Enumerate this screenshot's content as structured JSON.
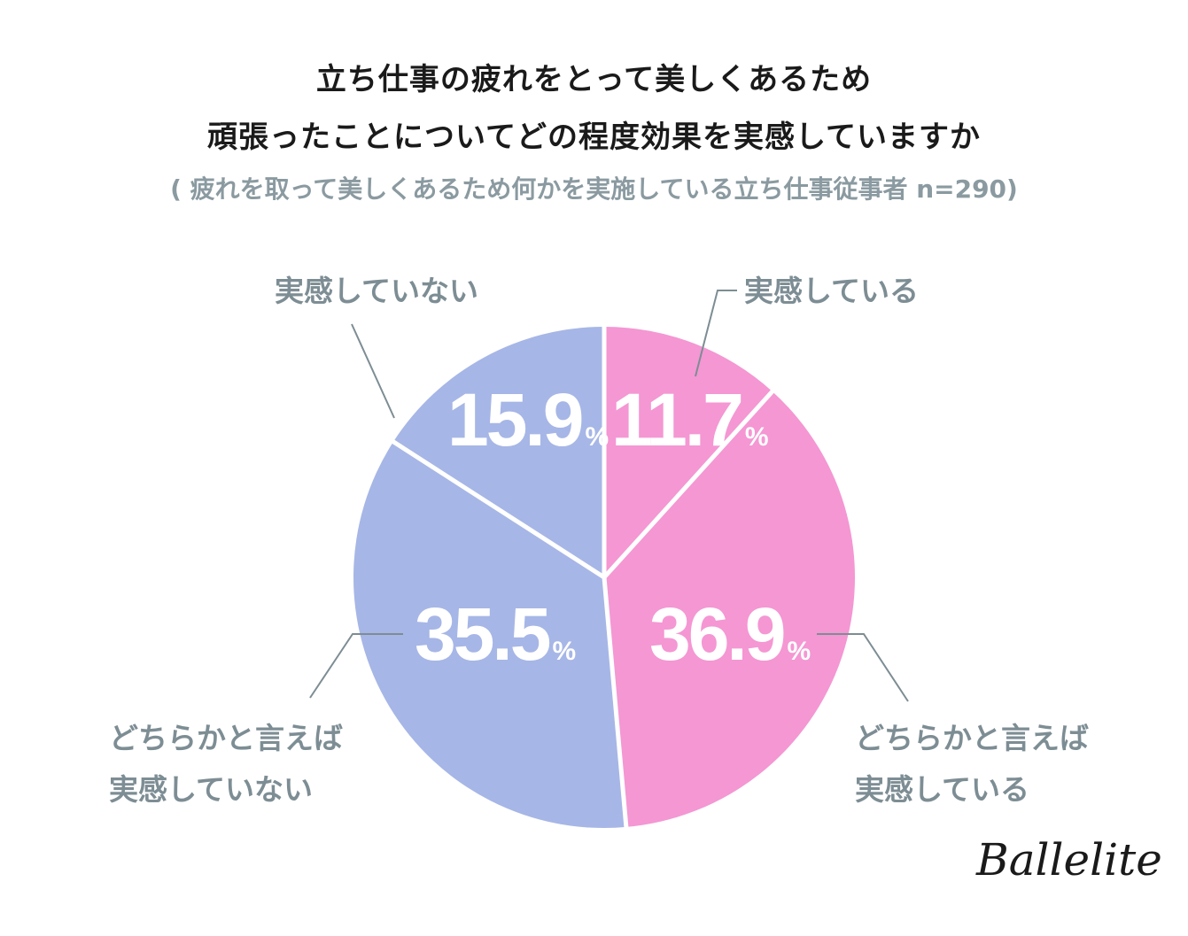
{
  "title_line1": "立ち仕事の疲れをとって美しくあるため",
  "title_line2": "頑張ったことについてどの程度効果を実感していますか",
  "subtitle": "( 疲れを取って美しくあるため何かを実施している立ち仕事従事者 n=290)",
  "brand": "Ballelite",
  "colors": {
    "positive": "#f497d3",
    "negative": "#a6b6e6",
    "label_text": "#7d8d94",
    "leader_line": "#7d8d94",
    "divider": "#ffffff"
  },
  "chart_data": {
    "type": "pie",
    "title": "立ち仕事の疲れをとって美しくあるため 頑張ったことについてどの程度効果を実感していますか",
    "subtitle": "( 疲れを取って美しくあるため何かを実施している立ち仕事従事者 n=290)",
    "start_angle_deg": 0,
    "direction": "clockwise",
    "unit": "%",
    "slices": [
      {
        "label": "実感している",
        "value": 11.7,
        "value_text": "11.7",
        "color": "#f497d3"
      },
      {
        "label": "どちらかと言えば\n実感している",
        "value": 36.9,
        "value_text": "36.9",
        "color": "#f497d3"
      },
      {
        "label": "どちらかと言えば\n実感していない",
        "value": 35.5,
        "value_text": "35.5",
        "color": "#a6b6e6"
      },
      {
        "label": "実感していない",
        "value": 15.9,
        "value_text": "15.9",
        "color": "#a6b6e6"
      }
    ]
  }
}
